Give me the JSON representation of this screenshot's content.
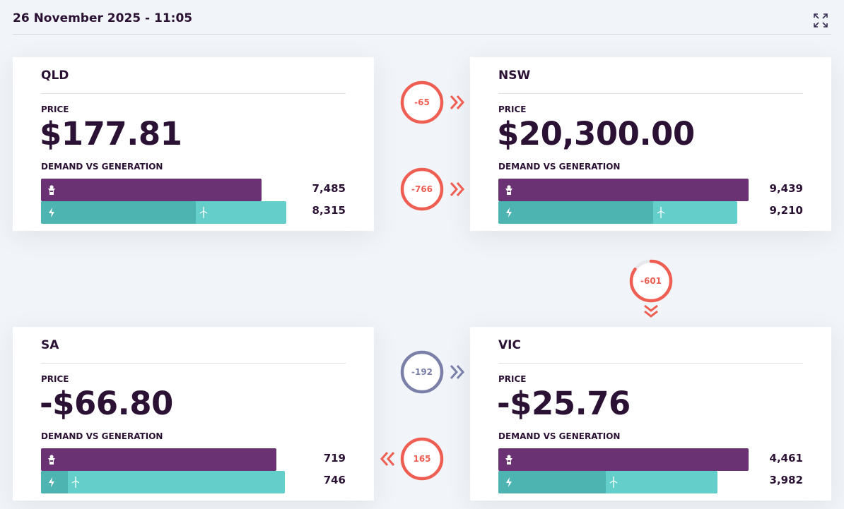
{
  "header": {
    "title": "26 November 2025 - 11:05"
  },
  "labels": {
    "price": "PRICE",
    "dvg": "DEMAND VS GENERATION"
  },
  "regions": {
    "qld": {
      "name": "QLD",
      "price": "$177.81",
      "demand": "7,485",
      "generation": "8,315",
      "demand_fill": 0.88,
      "gen_fill": 0.98,
      "gen_seg": 0.62,
      "wind_pos": 0.62
    },
    "nsw": {
      "name": "NSW",
      "price": "$20,300.00",
      "demand": "9,439",
      "generation": "9,210",
      "demand_fill": 1.0,
      "gen_fill": 0.955,
      "gen_seg": 0.62,
      "wind_pos": 0.62
    },
    "sa": {
      "name": "SA",
      "price": "-$66.80",
      "demand": "719",
      "generation": "746",
      "demand_fill": 0.94,
      "gen_fill": 0.975,
      "gen_seg": 0.107,
      "wind_pos": 0.107
    },
    "vic": {
      "name": "VIC",
      "price": "-$25.76",
      "demand": "4,461",
      "generation": "3,982",
      "demand_fill": 1.0,
      "gen_fill": 0.875,
      "gen_seg": 0.43,
      "wind_pos": 0.43
    }
  },
  "flows": {
    "qld_nsw_1": {
      "value": "-65",
      "direction": "right",
      "progress": 1.0,
      "color": "#ef5e52"
    },
    "qld_nsw_2": {
      "value": "-766",
      "direction": "right",
      "progress": 1.0,
      "color": "#ef5e52"
    },
    "nsw_vic": {
      "value": "-601",
      "direction": "down",
      "progress": 0.85,
      "color": "#ef5e52"
    },
    "sa_vic_1": {
      "value": "-192",
      "direction": "right",
      "progress": 1.0,
      "color": "#7b80a8"
    },
    "sa_vic_2": {
      "value": "165",
      "direction": "left",
      "progress": 1.0,
      "color": "#ef5e52"
    }
  },
  "colors": {
    "demand": "#6a3173",
    "generation": "#64cfca",
    "generation_dark": "#4db4b1",
    "text": "#2b1234"
  },
  "icons": {
    "expand": "expand-icon",
    "demand": "demand-person-icon",
    "generation": "lightning-icon",
    "wind": "wind-turbine-icon"
  }
}
